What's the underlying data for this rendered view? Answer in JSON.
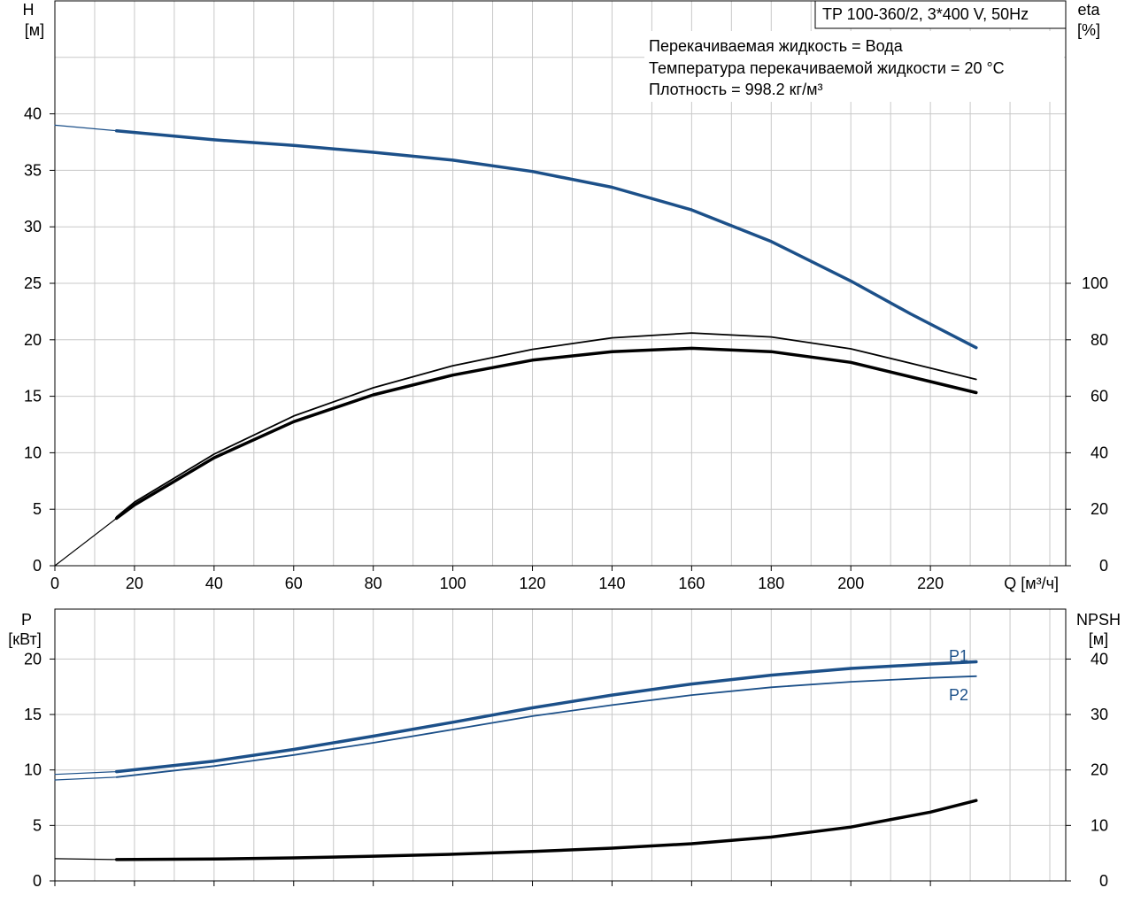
{
  "title_box": "TP 100-360/2, 3*400 V, 50Hz",
  "info_lines": [
    "Перекачиваемая жидкость = Вода",
    "Температура перекачиваемой жидкости = 20 °C",
    "Плотность = 998.2 кг/м³"
  ],
  "colors": {
    "blue": "#1c5089",
    "black": "#000000",
    "grid": "#c8c8c8"
  },
  "chart_data": [
    {
      "type": "line",
      "xlabel": "Q [м³/ч]",
      "xlim": [
        0,
        254
      ],
      "xticks": [
        0,
        20,
        40,
        60,
        80,
        100,
        120,
        140,
        160,
        180,
        200,
        220
      ],
      "ylabel_left": [
        "H",
        "[м]"
      ],
      "ylim_left": [
        0,
        50
      ],
      "yticks_left": [
        0,
        5,
        10,
        15,
        20,
        25,
        30,
        35,
        40
      ],
      "ylabel_right": [
        "eta",
        "[%]"
      ],
      "ylim_right": [
        0,
        200
      ],
      "yticks_right": [
        0,
        20,
        40,
        60,
        80,
        100
      ],
      "grid": true,
      "series": [
        {
          "axis": "left",
          "color": "#1c5089",
          "width": 3.5,
          "x": [
            15.5,
            40,
            60,
            80,
            100,
            120,
            140,
            160,
            180,
            200,
            215,
            231.5
          ],
          "y": [
            38.5,
            37.7,
            37.2,
            36.6,
            35.9,
            34.9,
            33.5,
            31.5,
            28.7,
            25.2,
            22.3,
            19.3
          ]
        },
        {
          "axis": "left",
          "color": "#1c5089",
          "width": 1.2,
          "x": [
            0,
            15.5
          ],
          "y": [
            39.0,
            38.5
          ]
        },
        {
          "axis": "right",
          "color": "#000000",
          "width": 3.5,
          "x": [
            15.5,
            20,
            40,
            60,
            80,
            100,
            120,
            140,
            160,
            180,
            200,
            220,
            231.5
          ],
          "y": [
            16.8,
            21.5,
            38.2,
            51.0,
            60.5,
            67.5,
            72.8,
            75.8,
            77.0,
            75.8,
            72.0,
            65.2,
            61.3
          ]
        },
        {
          "axis": "right",
          "color": "#000000",
          "width": 1.8,
          "x": [
            15.5,
            20,
            40,
            60,
            80,
            100,
            120,
            140,
            160,
            180,
            200,
            220,
            231.5
          ],
          "y": [
            17.3,
            22.5,
            39.5,
            53.0,
            63.0,
            70.8,
            76.6,
            80.7,
            82.4,
            81.0,
            76.8,
            70.0,
            66.0
          ]
        },
        {
          "axis": "right",
          "color": "#000000",
          "width": 1.2,
          "x": [
            0,
            15.5
          ],
          "y": [
            0,
            16.8
          ]
        }
      ]
    },
    {
      "type": "line",
      "xlim": [
        0,
        254
      ],
      "xticks": [
        0,
        20,
        40,
        60,
        80,
        100,
        120,
        140,
        160,
        180,
        200,
        220
      ],
      "ylabel_left": [
        "P",
        "[кВт]"
      ],
      "ylim_left": [
        0,
        24.5
      ],
      "yticks_left": [
        0,
        5,
        10,
        15,
        20
      ],
      "ylabel_right": [
        "NPSH",
        "[м]"
      ],
      "ylim_right": [
        0,
        49
      ],
      "yticks_right": [
        0,
        10,
        20,
        30,
        40
      ],
      "grid": true,
      "series": [
        {
          "name": "P1",
          "axis": "left",
          "color": "#1c5089",
          "width": 3.5,
          "x": [
            15.5,
            40,
            60,
            80,
            100,
            120,
            140,
            160,
            180,
            200,
            220,
            231.5
          ],
          "y": [
            9.85,
            10.8,
            11.85,
            13.05,
            14.3,
            15.6,
            16.75,
            17.75,
            18.55,
            19.15,
            19.55,
            19.75
          ]
        },
        {
          "name": "P2",
          "axis": "left",
          "color": "#1c5089",
          "width": 1.8,
          "x": [
            15.5,
            40,
            60,
            80,
            100,
            120,
            140,
            160,
            180,
            200,
            220,
            231.5
          ],
          "y": [
            9.35,
            10.35,
            11.35,
            12.45,
            13.65,
            14.85,
            15.85,
            16.75,
            17.45,
            17.95,
            18.3,
            18.45
          ]
        },
        {
          "axis": "left",
          "color": "#1c5089",
          "width": 1.2,
          "x": [
            0,
            15.5
          ],
          "y": [
            9.6,
            9.85
          ]
        },
        {
          "axis": "left",
          "color": "#1c5089",
          "width": 1.2,
          "x": [
            0,
            15.5
          ],
          "y": [
            9.1,
            9.35
          ]
        },
        {
          "axis": "right",
          "color": "#000000",
          "width": 3.5,
          "x": [
            15.5,
            40,
            60,
            80,
            100,
            120,
            140,
            160,
            180,
            200,
            220,
            231.5
          ],
          "y": [
            3.85,
            3.95,
            4.15,
            4.45,
            4.8,
            5.3,
            5.9,
            6.7,
            7.9,
            9.7,
            12.4,
            14.5
          ]
        },
        {
          "axis": "right",
          "color": "#000000",
          "width": 1.2,
          "x": [
            0,
            15.5
          ],
          "y": [
            4.0,
            3.85
          ]
        }
      ],
      "annotations": [
        "P1",
        "P2"
      ]
    }
  ]
}
